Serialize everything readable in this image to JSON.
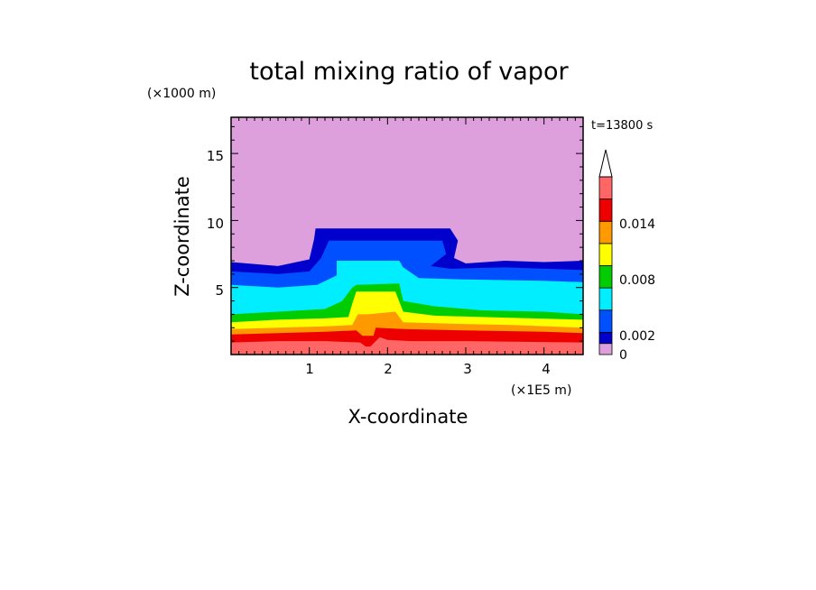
{
  "chart_data": {
    "type": "heatmap",
    "title": "total mixing ratio of vapor",
    "xlabel": "X-coordinate",
    "ylabel": "Z-coordinate",
    "x_unit": "(×1E5 m)",
    "y_unit": "(×1000 m)",
    "time_label": "t=13800 s",
    "xlim": [
      0,
      4.5
    ],
    "ylim": [
      0,
      17.7
    ],
    "x_ticks": [
      "1",
      "2",
      "3",
      "4"
    ],
    "y_ticks": [
      "5",
      "10",
      "15"
    ],
    "colorbar": {
      "boundaries": [
        0,
        0.001,
        0.002,
        0.004,
        0.006,
        0.008,
        0.01,
        0.012,
        0.014,
        0.016
      ],
      "colors": [
        "#dda0dd",
        "#0000cd",
        "#0050ff",
        "#00eeff",
        "#00cc00",
        "#ffff00",
        "#ff9900",
        "#ee0000",
        "#ff6666",
        "#ffb0b0"
      ],
      "tick_labels": [
        "0",
        "0.002",
        "0.008",
        "0.014"
      ],
      "extend": "max"
    },
    "bands": [
      {
        "level": 1,
        "base": [
          [
            0,
            6.9
          ],
          [
            0.6,
            6.6
          ],
          [
            1.0,
            7.1
          ],
          [
            1.06,
            8.6
          ],
          [
            1.08,
            9.4
          ],
          [
            2.8,
            9.4
          ],
          [
            2.9,
            8.5
          ],
          [
            2.85,
            7.2
          ],
          [
            3.0,
            6.8
          ],
          [
            3.5,
            7.0
          ],
          [
            4.0,
            6.9
          ],
          [
            4.5,
            7.0
          ]
        ]
      },
      {
        "level": 2,
        "base": [
          [
            0,
            6.2
          ],
          [
            0.6,
            6.0
          ],
          [
            1.0,
            6.2
          ],
          [
            1.15,
            7.2
          ],
          [
            1.25,
            8.5
          ],
          [
            2.7,
            8.5
          ],
          [
            2.75,
            7.5
          ],
          [
            2.55,
            6.6
          ],
          [
            2.8,
            6.4
          ],
          [
            3.5,
            6.5
          ],
          [
            4.5,
            6.3
          ]
        ]
      },
      {
        "level": 3,
        "base": [
          [
            0,
            5.2
          ],
          [
            0.6,
            5.0
          ],
          [
            1.1,
            5.2
          ],
          [
            1.35,
            5.9
          ],
          [
            1.35,
            7.0
          ],
          [
            2.15,
            7.0
          ],
          [
            2.2,
            6.5
          ],
          [
            2.4,
            5.7
          ],
          [
            3.0,
            5.6
          ],
          [
            4.0,
            5.5
          ],
          [
            4.5,
            5.4
          ]
        ]
      },
      {
        "level": 4,
        "base": [
          [
            0,
            3.0
          ],
          [
            0.6,
            3.2
          ],
          [
            1.2,
            3.4
          ],
          [
            1.42,
            4.0
          ],
          [
            1.55,
            5.0
          ],
          [
            1.6,
            5.2
          ],
          [
            2.15,
            5.3
          ],
          [
            2.2,
            4.0
          ],
          [
            2.6,
            3.6
          ],
          [
            3.2,
            3.3
          ],
          [
            4.0,
            3.2
          ],
          [
            4.5,
            3.0
          ]
        ]
      },
      {
        "level": 5,
        "base": [
          [
            0,
            2.4
          ],
          [
            0.6,
            2.6
          ],
          [
            1.2,
            2.7
          ],
          [
            1.5,
            2.8
          ],
          [
            1.55,
            3.8
          ],
          [
            1.6,
            4.7
          ],
          [
            2.1,
            4.7
          ],
          [
            2.2,
            3.2
          ],
          [
            2.6,
            2.9
          ],
          [
            3.2,
            2.8
          ],
          [
            4.5,
            2.6
          ]
        ]
      },
      {
        "level": 6,
        "base": [
          [
            0,
            1.9
          ],
          [
            0.6,
            2.0
          ],
          [
            1.2,
            2.1
          ],
          [
            1.55,
            2.2
          ],
          [
            1.62,
            3.0
          ],
          [
            1.75,
            3.0
          ],
          [
            2.1,
            3.2
          ],
          [
            2.2,
            2.4
          ],
          [
            2.8,
            2.3
          ],
          [
            3.6,
            2.2
          ],
          [
            4.5,
            2.0
          ]
        ]
      },
      {
        "level": 7,
        "base": [
          [
            0,
            1.5
          ],
          [
            0.6,
            1.6
          ],
          [
            1.2,
            1.7
          ],
          [
            1.6,
            1.8
          ],
          [
            1.68,
            1.4
          ],
          [
            1.82,
            1.4
          ],
          [
            1.85,
            2.0
          ],
          [
            2.2,
            1.9
          ],
          [
            3.0,
            1.8
          ],
          [
            4.0,
            1.7
          ],
          [
            4.5,
            1.6
          ]
        ]
      },
      {
        "level": 8,
        "base": [
          [
            0,
            0.9
          ],
          [
            0.6,
            1.0
          ],
          [
            1.2,
            1.0
          ],
          [
            1.65,
            0.9
          ],
          [
            1.72,
            0.6
          ],
          [
            1.78,
            0.6
          ],
          [
            1.9,
            1.3
          ],
          [
            2.0,
            1.1
          ],
          [
            2.3,
            1.0
          ],
          [
            3.0,
            1.0
          ],
          [
            4.5,
            0.9
          ]
        ]
      }
    ]
  }
}
